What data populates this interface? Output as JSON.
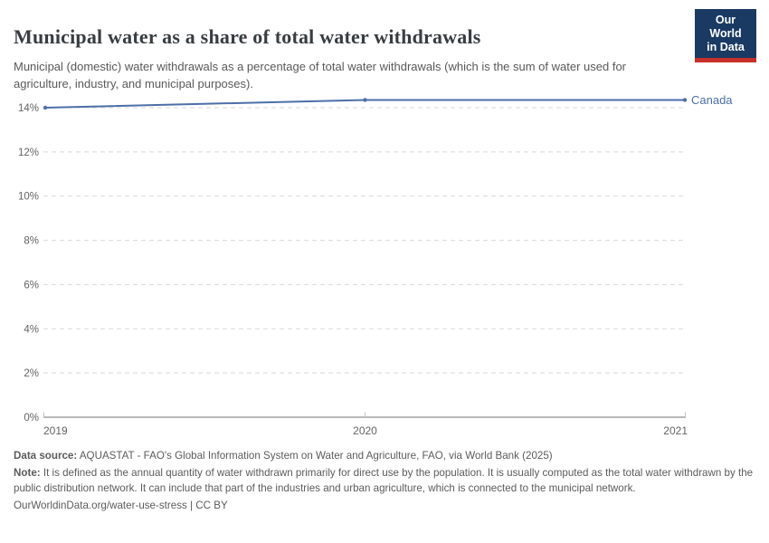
{
  "header": {
    "title": "Municipal water as a share of total water withdrawals",
    "subtitle": "Municipal (domestic) water withdrawals as a percentage of total water withdrawals (which is the sum of water used for agriculture, industry, and municipal purposes).",
    "logo": {
      "line1": "Our World",
      "line2": "in Data",
      "bg_color": "#1a3a63",
      "accent_color": "#c7302b"
    }
  },
  "chart_data": {
    "type": "line",
    "title": "Municipal water as a share of total water withdrawals",
    "x": [
      2019,
      2020,
      2021
    ],
    "xtick_labels": [
      "2019",
      "2020",
      "2021"
    ],
    "series": [
      {
        "name": "Canada",
        "values": [
          14.0,
          14.35,
          14.35
        ],
        "color": "#4c6fa8"
      }
    ],
    "ylim": [
      0,
      14
    ],
    "ytick_values": [
      0,
      2,
      4,
      6,
      8,
      10,
      12,
      14
    ],
    "ytick_labels": [
      "0%",
      "2%",
      "4%",
      "6%",
      "8%",
      "10%",
      "12%",
      "14%"
    ],
    "grid": "horizontal-dashed",
    "legend_position": "right-of-line",
    "colors": {
      "gridline": "#d9d9d9",
      "axis": "#a0a0a0",
      "tick": "#c2c2c2",
      "tick_label": "#636363"
    }
  },
  "footer": {
    "data_source_label": "Data source:",
    "data_source_text": " AQUASTAT - FAO's Global Information System on Water and Agriculture, FAO, via World Bank (2025)",
    "note_label": "Note:",
    "note_text": " It is defined as the annual quantity of water withdrawn primarily for direct use by the population. It is usually computed as the total water withdrawn by the public distribution network. It can include that part of the industries and urban agriculture, which is connected to the municipal network.",
    "license_text": "OurWorldinData.org/water-use-stress | CC BY"
  }
}
